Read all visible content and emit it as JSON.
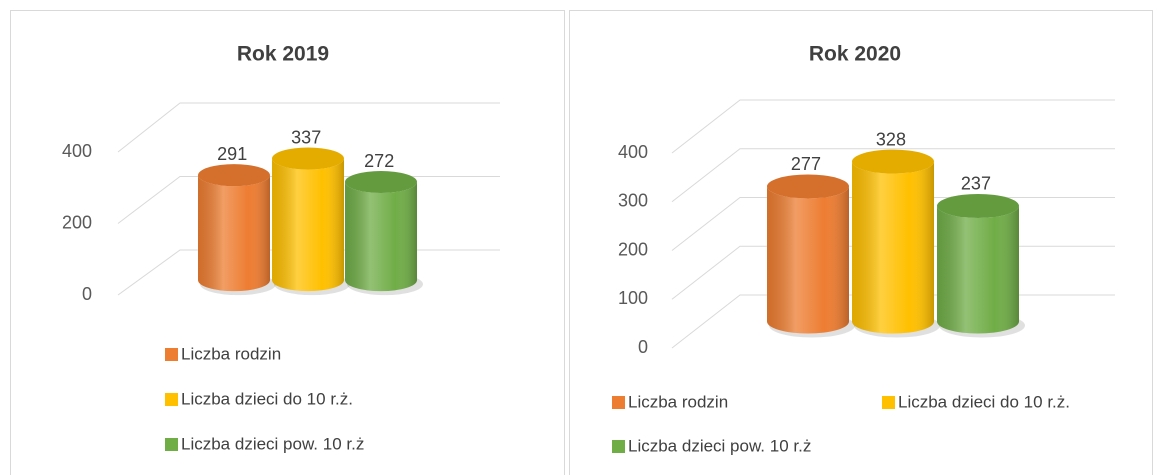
{
  "chart_data": [
    {
      "type": "bar",
      "title": "Rok 2019",
      "ylim": [
        0,
        400
      ],
      "yticks": [
        0,
        200,
        400
      ],
      "grid": true,
      "series": [
        {
          "name": "Liczba rodzin",
          "color": "#ed7d31",
          "values": [
            291
          ]
        },
        {
          "name": "Liczba dzieci do 10 r.ż.",
          "color": "#ffc000",
          "values": [
            337
          ]
        },
        {
          "name": "Liczba dzieci pow. 10 r.ż",
          "color": "#70ad47",
          "values": [
            272
          ]
        }
      ]
    },
    {
      "type": "bar",
      "title": "Rok 2020",
      "ylim": [
        0,
        400
      ],
      "yticks": [
        0,
        100,
        200,
        300,
        400
      ],
      "grid": true,
      "series": [
        {
          "name": "Liczba rodzin",
          "color": "#ed7d31",
          "values": [
            277
          ]
        },
        {
          "name": "Liczba dzieci do 10 r.ż.",
          "color": "#ffc000",
          "values": [
            328
          ]
        },
        {
          "name": "Liczba dzieci pow. 10 r.ż",
          "color": "#70ad47",
          "values": [
            237
          ]
        }
      ]
    }
  ]
}
